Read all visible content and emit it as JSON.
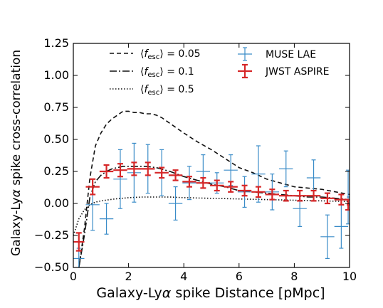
{
  "chart_data": {
    "type": "line",
    "xlabel_parts": [
      "Galaxy-Ly",
      "α",
      " spike Distance [pMpc]"
    ],
    "ylabel_parts": [
      "Galaxy-Ly",
      "α",
      " spike cross-correlation"
    ],
    "xlim": [
      0,
      10
    ],
    "ylim": [
      -0.5,
      1.25
    ],
    "xticks": [
      0,
      2,
      4,
      6,
      8,
      10
    ],
    "xtick_labels": [
      "0",
      "2",
      "4",
      "6",
      "8",
      "10"
    ],
    "yticks": [
      -0.5,
      -0.25,
      0.0,
      0.25,
      0.5,
      0.75,
      1.0,
      1.25
    ],
    "ytick_labels": [
      "−0.50",
      "−0.25",
      "0.00",
      "0.25",
      "0.50",
      "0.75",
      "1.00",
      "1.25"
    ],
    "grid": false,
    "legend_position": "top",
    "colors": {
      "muse": "#3a8cc8",
      "jwst": "#d62728",
      "model": "#111111"
    },
    "models": [
      {
        "fesc": "0.05",
        "dash": "dashed",
        "x": [
          0.2,
          0.4,
          0.6,
          0.8,
          1.0,
          1.2,
          1.4,
          1.6,
          1.8,
          2.0,
          2.2,
          2.4,
          2.6,
          2.8,
          3.0,
          3.2,
          3.4,
          3.6,
          3.8,
          4.0,
          4.5,
          5.0,
          5.5,
          6.0,
          6.5,
          7.0,
          7.5,
          8.0,
          8.5,
          9.0,
          9.5,
          10.0
        ],
        "y": [
          -0.5,
          -0.2,
          0.2,
          0.45,
          0.55,
          0.62,
          0.66,
          0.69,
          0.72,
          0.72,
          0.71,
          0.71,
          0.7,
          0.7,
          0.69,
          0.67,
          0.64,
          0.61,
          0.58,
          0.55,
          0.48,
          0.42,
          0.35,
          0.28,
          0.24,
          0.19,
          0.16,
          0.13,
          0.12,
          0.11,
          0.09,
          0.07
        ]
      },
      {
        "fesc": "0.1",
        "dash": "dashdot",
        "x": [
          0.2,
          0.4,
          0.6,
          0.8,
          1.0,
          1.2,
          1.4,
          1.6,
          1.8,
          2.0,
          2.3,
          2.6,
          3.0,
          3.5,
          4.0,
          4.5,
          5.0,
          5.5,
          6.0,
          6.5,
          7.0,
          7.5,
          8.0,
          8.5,
          9.0,
          9.5,
          10.0
        ],
        "y": [
          -0.5,
          -0.25,
          0.05,
          0.17,
          0.22,
          0.25,
          0.27,
          0.28,
          0.29,
          0.29,
          0.29,
          0.29,
          0.28,
          0.25,
          0.21,
          0.18,
          0.15,
          0.13,
          0.1,
          0.09,
          0.08,
          0.07,
          0.06,
          0.05,
          0.05,
          0.04,
          0.03
        ]
      },
      {
        "fesc": "0.5",
        "dash": "dotted",
        "x": [
          0.0,
          0.2,
          0.4,
          0.6,
          0.8,
          1.0,
          1.5,
          2.0,
          2.5,
          3.0,
          3.5,
          4.0,
          5.0,
          6.0,
          7.0,
          8.0,
          9.0,
          10.0
        ],
        "y": [
          -0.25,
          -0.12,
          -0.05,
          -0.01,
          0.01,
          0.02,
          0.035,
          0.045,
          0.05,
          0.05,
          0.05,
          0.045,
          0.04,
          0.035,
          0.03,
          0.025,
          0.02,
          0.015
        ]
      }
    ],
    "series": [
      {
        "name": "MUSE LAE",
        "points": [
          {
            "x": 0.2,
            "y": -0.43,
            "xerr": 0.2,
            "yerr": 0.08
          },
          {
            "x": 0.7,
            "y": -0.01,
            "xerr": 0.25,
            "yerr": 0.2
          },
          {
            "x": 1.2,
            "y": -0.12,
            "xerr": 0.25,
            "yerr": 0.12
          },
          {
            "x": 1.7,
            "y": 0.19,
            "xerr": 0.25,
            "yerr": 0.23
          },
          {
            "x": 2.2,
            "y": 0.24,
            "xerr": 0.25,
            "yerr": 0.23
          },
          {
            "x": 2.7,
            "y": 0.27,
            "xerr": 0.25,
            "yerr": 0.19
          },
          {
            "x": 3.2,
            "y": 0.24,
            "xerr": 0.25,
            "yerr": 0.18
          },
          {
            "x": 3.7,
            "y": -0.0,
            "xerr": 0.25,
            "yerr": 0.13
          },
          {
            "x": 4.2,
            "y": 0.16,
            "xerr": 0.25,
            "yerr": 0.13
          },
          {
            "x": 4.7,
            "y": 0.25,
            "xerr": 0.25,
            "yerr": 0.13
          },
          {
            "x": 5.2,
            "y": 0.16,
            "xerr": 0.25,
            "yerr": 0.08
          },
          {
            "x": 5.7,
            "y": 0.26,
            "xerr": 0.25,
            "yerr": 0.12
          },
          {
            "x": 6.2,
            "y": 0.09,
            "xerr": 0.25,
            "yerr": 0.12
          },
          {
            "x": 6.7,
            "y": 0.23,
            "xerr": 0.25,
            "yerr": 0.22
          },
          {
            "x": 7.2,
            "y": 0.09,
            "xerr": 0.25,
            "yerr": 0.14
          },
          {
            "x": 7.7,
            "y": 0.27,
            "xerr": 0.25,
            "yerr": 0.14
          },
          {
            "x": 8.2,
            "y": -0.04,
            "xerr": 0.25,
            "yerr": 0.14
          },
          {
            "x": 8.7,
            "y": 0.2,
            "xerr": 0.25,
            "yerr": 0.14
          },
          {
            "x": 9.2,
            "y": -0.26,
            "xerr": 0.25,
            "yerr": 0.17
          },
          {
            "x": 9.7,
            "y": -0.18,
            "xerr": 0.25,
            "yerr": 0.17
          },
          {
            "x": 9.95,
            "y": 0.05,
            "xerr": 0.05,
            "yerr": 0.21
          }
        ]
      },
      {
        "name": "JWST ASPIRE",
        "points": [
          {
            "x": 0.2,
            "y": -0.3,
            "xerr": 0.2,
            "yerr": 0.07
          },
          {
            "x": 0.7,
            "y": 0.13,
            "xerr": 0.25,
            "yerr": 0.06
          },
          {
            "x": 1.2,
            "y": 0.25,
            "xerr": 0.25,
            "yerr": 0.05
          },
          {
            "x": 1.7,
            "y": 0.26,
            "xerr": 0.25,
            "yerr": 0.05
          },
          {
            "x": 2.2,
            "y": 0.27,
            "xerr": 0.25,
            "yerr": 0.05
          },
          {
            "x": 2.7,
            "y": 0.27,
            "xerr": 0.25,
            "yerr": 0.05
          },
          {
            "x": 3.2,
            "y": 0.24,
            "xerr": 0.25,
            "yerr": 0.04
          },
          {
            "x": 3.7,
            "y": 0.22,
            "xerr": 0.25,
            "yerr": 0.04
          },
          {
            "x": 4.2,
            "y": 0.17,
            "xerr": 0.25,
            "yerr": 0.04
          },
          {
            "x": 4.7,
            "y": 0.16,
            "xerr": 0.25,
            "yerr": 0.04
          },
          {
            "x": 5.2,
            "y": 0.14,
            "xerr": 0.25,
            "yerr": 0.04
          },
          {
            "x": 5.7,
            "y": 0.13,
            "xerr": 0.25,
            "yerr": 0.04
          },
          {
            "x": 6.2,
            "y": 0.1,
            "xerr": 0.25,
            "yerr": 0.04
          },
          {
            "x": 6.7,
            "y": 0.09,
            "xerr": 0.25,
            "yerr": 0.04
          },
          {
            "x": 7.2,
            "y": 0.07,
            "xerr": 0.25,
            "yerr": 0.04
          },
          {
            "x": 7.7,
            "y": 0.06,
            "xerr": 0.25,
            "yerr": 0.04
          },
          {
            "x": 8.2,
            "y": 0.06,
            "xerr": 0.25,
            "yerr": 0.04
          },
          {
            "x": 8.7,
            "y": 0.06,
            "xerr": 0.25,
            "yerr": 0.04
          },
          {
            "x": 9.2,
            "y": 0.04,
            "xerr": 0.25,
            "yerr": 0.04
          },
          {
            "x": 9.7,
            "y": 0.03,
            "xerr": 0.25,
            "yerr": 0.04
          },
          {
            "x": 9.95,
            "y": -0.01,
            "xerr": 0.05,
            "yerr": 0.04
          }
        ]
      }
    ]
  }
}
